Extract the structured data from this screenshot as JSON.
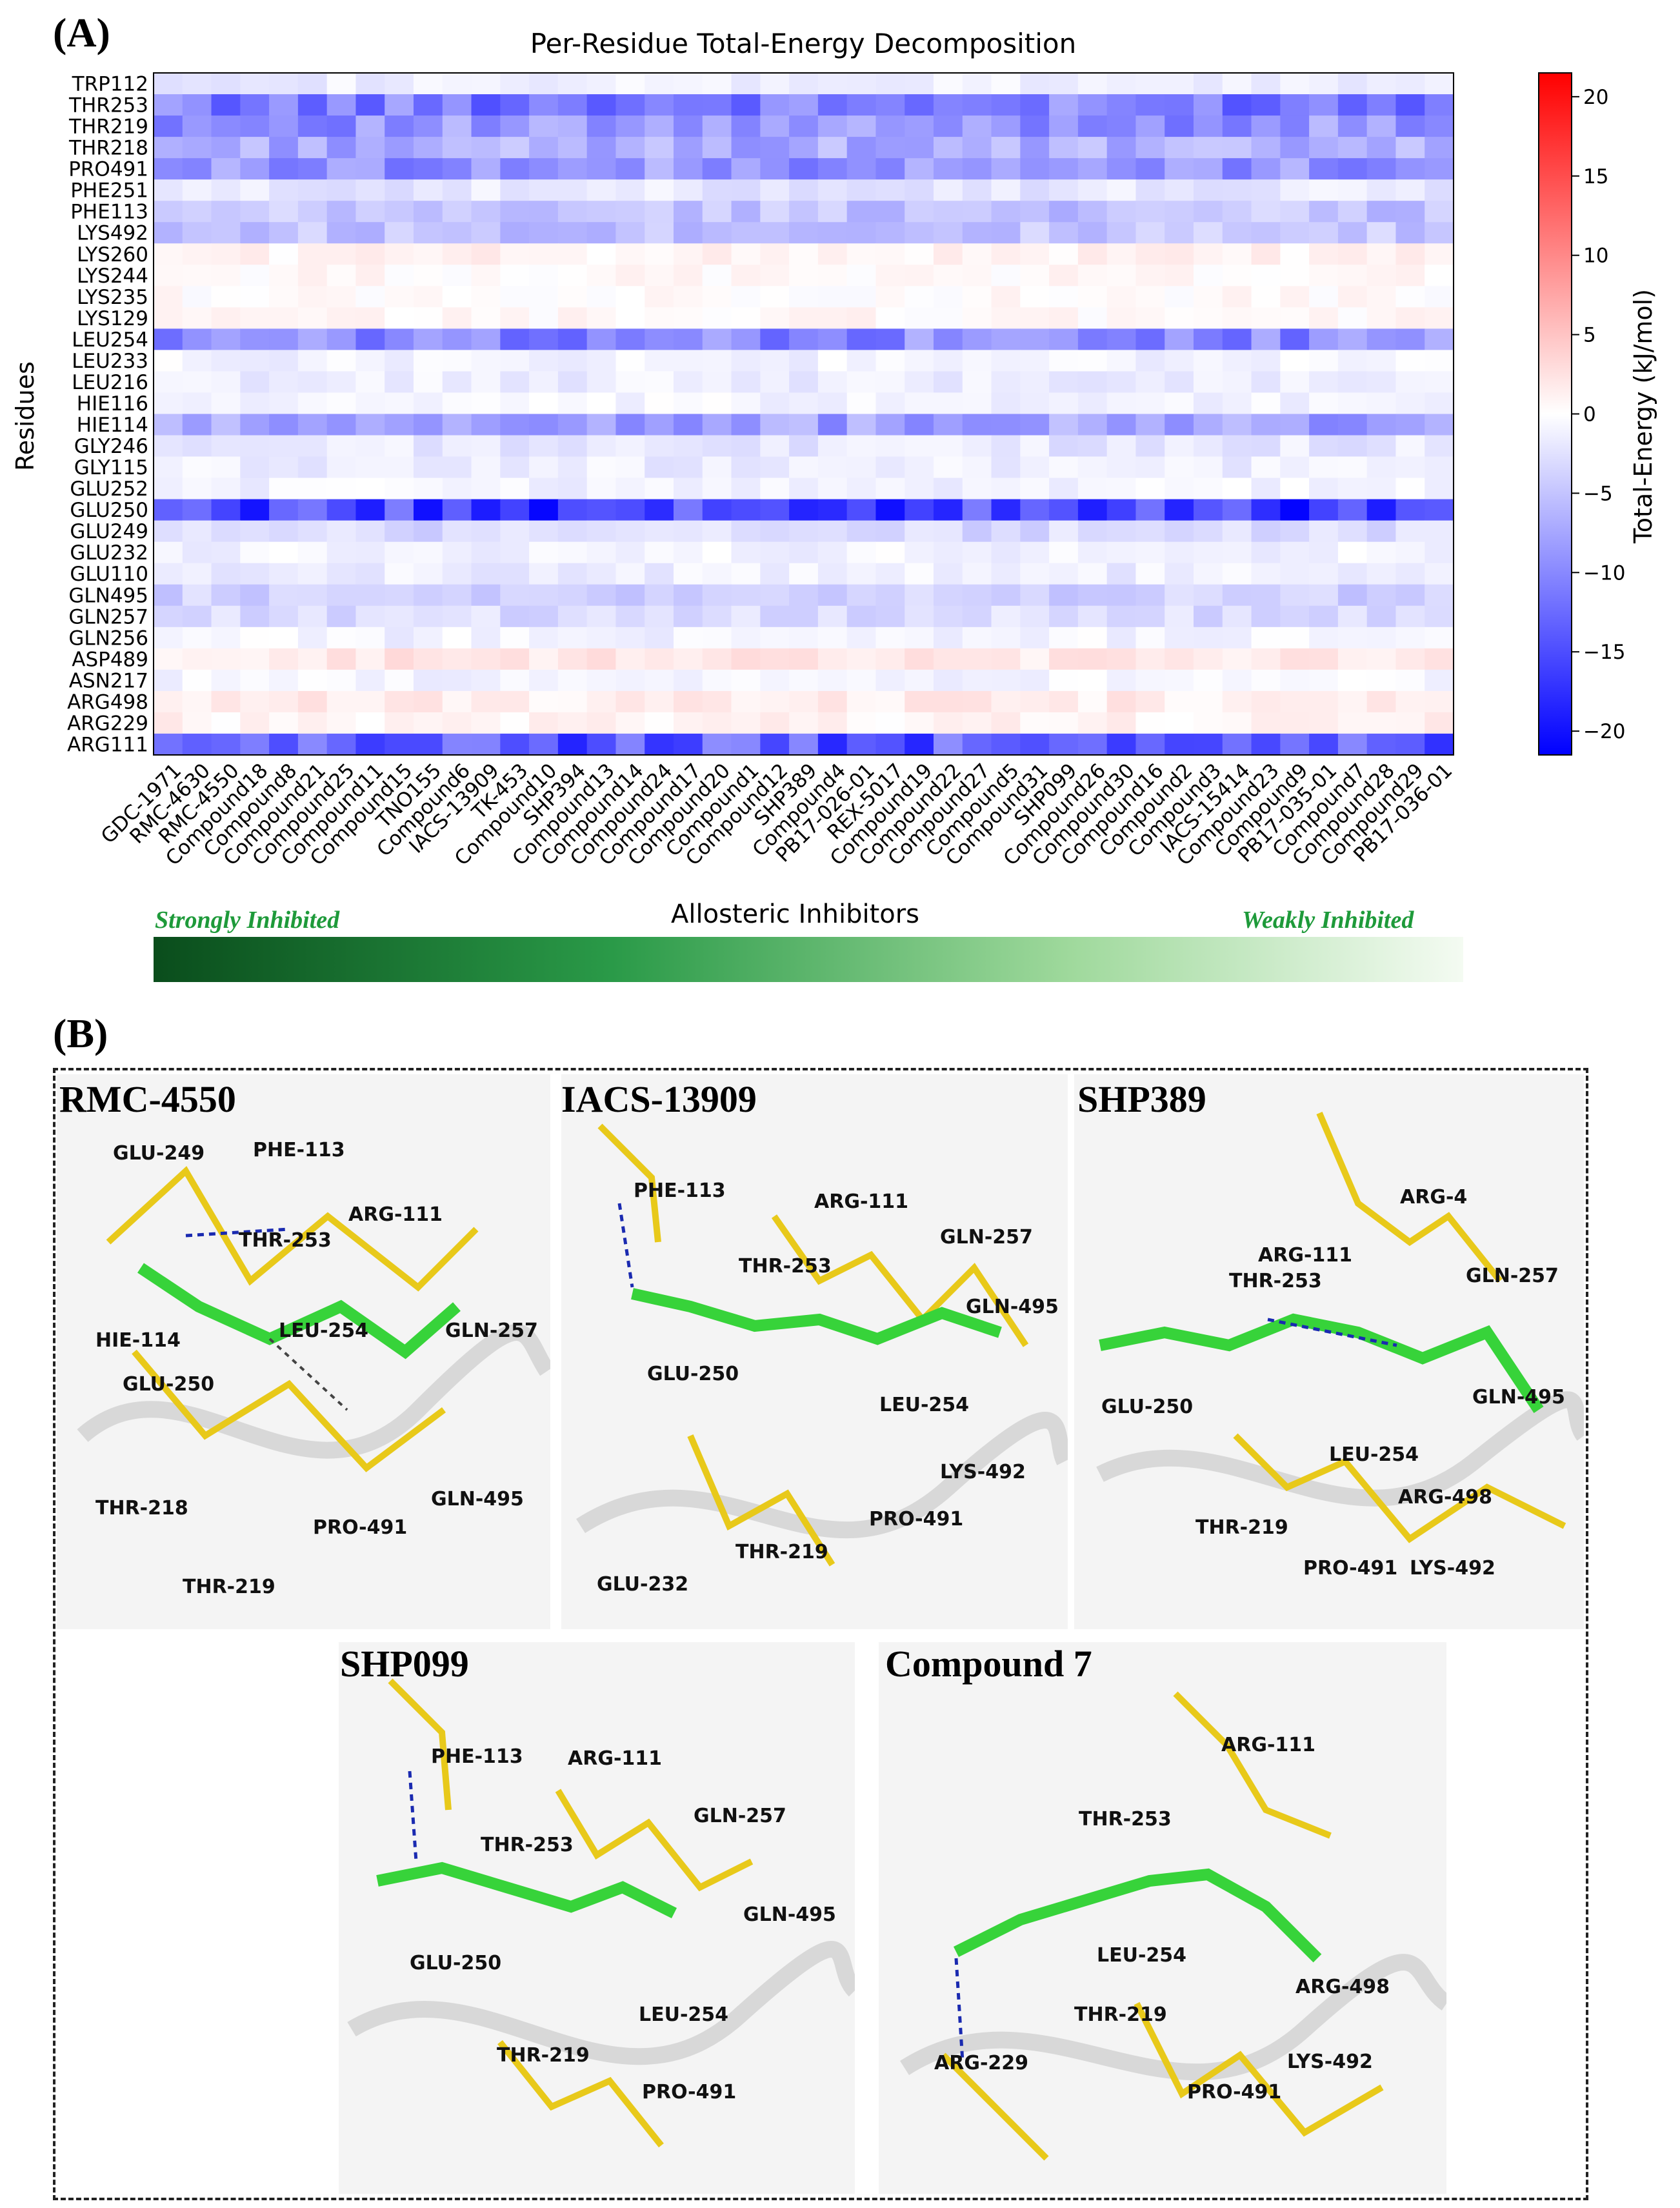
{
  "panel_a_label": "(A)",
  "panel_b_label": "(B)",
  "chart_data": {
    "type": "heatmap",
    "title": "Per-Residue Total-Energy Decomposition",
    "ylabel": "Residues",
    "xlabel": "Allosteric Inhibitors",
    "colorbar_label": "Total-Energy (kJ/mol)",
    "colorbar_ticks": [
      "20",
      "15",
      "10",
      "5",
      "0",
      "−5",
      "−10",
      "−15",
      "−20"
    ],
    "colorbar_range": [
      -21.5,
      21.5
    ],
    "colors": {
      "negative": "#0000ff",
      "zero": "#ffffff",
      "positive": "#ff0000"
    },
    "rows": [
      "TRP112",
      "THR253",
      "THR219",
      "THR218",
      "PRO491",
      "PHE251",
      "PHE113",
      "LYS492",
      "LYS260",
      "LYS244",
      "LYS235",
      "LYS129",
      "LEU254",
      "LEU233",
      "LEU216",
      "HIE116",
      "HIE114",
      "GLY246",
      "GLY115",
      "GLU252",
      "GLU250",
      "GLU249",
      "GLU232",
      "GLU110",
      "GLN495",
      "GLN257",
      "GLN256",
      "ASP489",
      "ASN217",
      "ARG498",
      "ARG229",
      "ARG111"
    ],
    "columns": [
      "GDC-1971",
      "RMC-4630",
      "RMC-4550",
      "Compound18",
      "Compound8",
      "Compound21",
      "Compound25",
      "Compound11",
      "Compound15",
      "TNO155",
      "Compound6",
      "IACS-13909",
      "TK-453",
      "Compound10",
      "SHP394",
      "Compound13",
      "Compound14",
      "Compound24",
      "Compound17",
      "Compound20",
      "Compound1",
      "Compound12",
      "SHP389",
      "Compound4",
      "PB17-026-01",
      "REX-5017",
      "Compound19",
      "Compound22",
      "Compound27",
      "Compound5",
      "Compound31",
      "SHP099",
      "Compound26",
      "Compound30",
      "Compound16",
      "Compound2",
      "Compound3",
      "IACS-15414",
      "Compound23",
      "Compound9",
      "PB17-035-01",
      "Compound7",
      "Compound28",
      "Compound29",
      "PB17-036-01"
    ],
    "row_mean_values": [
      -1.5,
      -11,
      -9,
      -7,
      -9,
      -2,
      -5,
      -5,
      1,
      0.5,
      0.3,
      0.5,
      -10,
      -1,
      -1.5,
      -1,
      -8,
      -2,
      -1.5,
      -1,
      -16,
      -3,
      -1,
      -1.5,
      -4,
      -3,
      -1,
      2,
      -1,
      1.5,
      1,
      -14
    ],
    "gradient_labels": {
      "left": "Strongly Inhibited",
      "right": "Weakly Inhibited"
    }
  },
  "structures": [
    {
      "title": "RMC-4550",
      "residues": [
        "GLU-249",
        "PHE-113",
        "THR-253",
        "ARG-111",
        "LEU-254",
        "GLN-257",
        "HIE-114",
        "GLU-250",
        "THR-218",
        "PRO-491",
        "GLN-495",
        "THR-219"
      ]
    },
    {
      "title": "IACS-13909",
      "residues": [
        "PHE-113",
        "ARG-111",
        "GLN-257",
        "THR-253",
        "GLN-495",
        "GLU-250",
        "LEU-254",
        "LYS-492",
        "PRO-491",
        "THR-219",
        "GLU-232"
      ]
    },
    {
      "title": "SHP389",
      "residues": [
        "ARG-4",
        "ARG-111",
        "THR-253",
        "GLN-257",
        "GLU-250",
        "GLN-495",
        "LEU-254",
        "ARG-498",
        "THR-219",
        "PRO-491",
        "LYS-492"
      ]
    },
    {
      "title": "SHP099",
      "residues": [
        "PHE-113",
        "ARG-111",
        "GLN-257",
        "THR-253",
        "GLN-495",
        "GLU-250",
        "LEU-254",
        "THR-219",
        "PRO-491"
      ]
    },
    {
      "title": "Compound 7",
      "residues": [
        "ARG-111",
        "THR-253",
        "LEU-254",
        "ARG-498",
        "THR-219",
        "ARG-229",
        "PRO-491",
        "LYS-492"
      ]
    }
  ]
}
